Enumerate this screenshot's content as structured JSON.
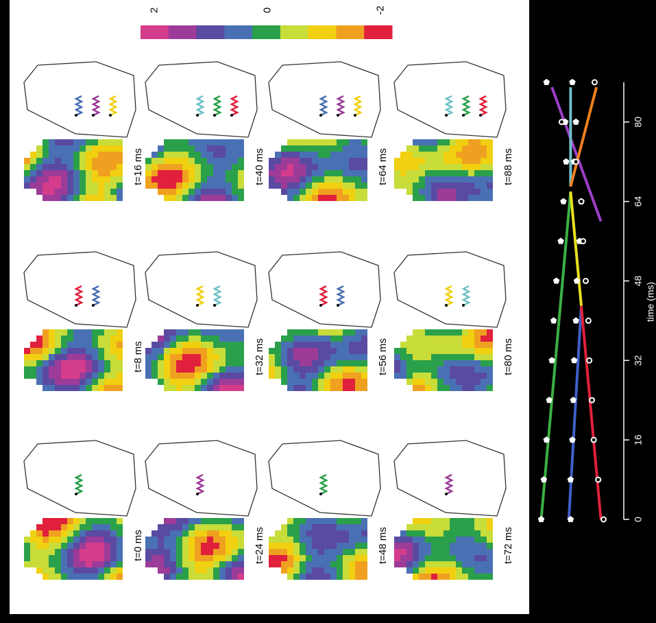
{
  "colorbar": {
    "colors": [
      "#d43c8c",
      "#9c3c98",
      "#5a4aa2",
      "#4a70b4",
      "#2aa04a",
      "#c8dc3a",
      "#f0d010",
      "#f0a020",
      "#e0203c"
    ],
    "lim": [
      2.25,
      -2.2
    ],
    "ticks": [
      2,
      0,
      -2
    ]
  },
  "panels": [
    {
      "label": "t=0 ms"
    },
    {
      "label": "t=8 ms"
    },
    {
      "label": "t=16 ms"
    },
    {
      "label": "t=24 ms"
    },
    {
      "label": "t=32 ms"
    },
    {
      "label": "t=40 ms"
    },
    {
      "label": "t=48 ms"
    },
    {
      "label": "t=56 ms"
    },
    {
      "label": "t=64 ms"
    },
    {
      "label": "t=72 ms"
    },
    {
      "label": "t=80 ms"
    },
    {
      "label": "t=88 ms"
    }
  ],
  "chart_data": {
    "type": "line",
    "xlabel": "time (ms)",
    "xlim": [
      0,
      88
    ],
    "xticks": [
      0,
      16,
      32,
      48,
      64,
      80
    ],
    "ylim": [
      0,
      100
    ],
    "series": [
      {
        "color": "#3cb043",
        "x": [
          0,
          66
        ],
        "values": [
          15,
          48
        ]
      },
      {
        "color": "#4060c8",
        "x": [
          0,
          43
        ],
        "values": [
          46,
          60
        ]
      },
      {
        "color": "#e0203a",
        "x": [
          0,
          43
        ],
        "values": [
          82,
          60
        ]
      },
      {
        "color": "#e8e020",
        "x": [
          43,
          66
        ],
        "values": [
          60,
          48
        ]
      },
      {
        "color": "#9a40c8",
        "x": [
          60,
          87
        ],
        "values": [
          82,
          27
        ]
      },
      {
        "color": "#70c0c8",
        "x": [
          67,
          87
        ],
        "values": [
          48,
          48
        ]
      },
      {
        "color": "#f08020",
        "x": [
          67,
          87
        ],
        "values": [
          48,
          77
        ]
      },
      {
        "color": "#ffffff",
        "marker": "pentagon",
        "x": [
          0,
          8,
          16,
          24,
          32,
          40,
          48,
          56,
          64,
          72,
          80,
          88
        ],
        "values": [
          15,
          18,
          21,
          24,
          27,
          29,
          32,
          37,
          40,
          43,
          42,
          21
        ]
      },
      {
        "color": "#ffffff",
        "marker": "pentagon",
        "x": [
          0,
          8,
          16,
          24,
          32,
          40,
          48,
          56,
          64,
          72,
          80,
          88
        ],
        "values": [
          48,
          48,
          50,
          51,
          52,
          54,
          55,
          58,
          60,
          52,
          54,
          50
        ]
      },
      {
        "color": "#ffffff",
        "marker": "circle",
        "x": [
          0,
          8,
          16,
          24,
          32,
          40,
          48,
          56,
          64,
          72,
          80,
          88
        ],
        "values": [
          85,
          79,
          74,
          72,
          69,
          68,
          65,
          62,
          60,
          54,
          38,
          75
        ]
      }
    ]
  }
}
